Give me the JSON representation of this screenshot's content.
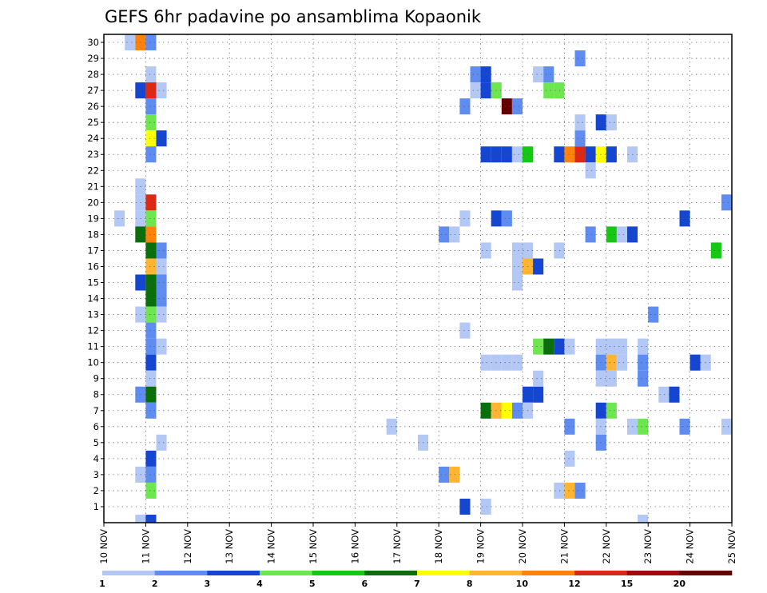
{
  "chart_data": {
    "type": "heatmap",
    "title": "GEFS 6hr padavine po ansamblima Kopaonik",
    "xlabel": "",
    "ylabel": "",
    "x_range": [
      10,
      25
    ],
    "y_range": [
      0,
      30
    ],
    "grid": true,
    "x_tick_labels": [
      "10 NOV",
      "11 NOV",
      "12 NOV",
      "13 NOV",
      "14 NOV",
      "15 NOV",
      "16 NOV",
      "17 NOV",
      "18 NOV",
      "19 NOV",
      "20 NOV",
      "21 NOV",
      "22 NOV",
      "23 NOV",
      "24 NOV",
      "25 NOV"
    ],
    "y_tick_labels": [
      "1",
      "2",
      "3",
      "4",
      "5",
      "6",
      "7",
      "8",
      "9",
      "10",
      "11",
      "12",
      "13",
      "14",
      "15",
      "16",
      "17",
      "18",
      "19",
      "20",
      "21",
      "22",
      "23",
      "24",
      "25",
      "26",
      "27",
      "28",
      "29",
      "30"
    ],
    "colorbar": {
      "labels": [
        "1",
        "2",
        "3",
        "4",
        "5",
        "6",
        "7",
        "8",
        "10",
        "12",
        "15",
        "20"
      ],
      "colors": [
        "#b4c8f5",
        "#5f8cf0",
        "#1446d2",
        "#6ee650",
        "#14c814",
        "#0a6e0a",
        "#ffff00",
        "#ffb432",
        "#ff820a",
        "#dc2814",
        "#a00a0a",
        "#640000"
      ]
    },
    "cell_width_days": 0.25,
    "cells": [
      {
        "day": 10.5,
        "member": 30,
        "level": 1
      },
      {
        "day": 10.75,
        "member": 30,
        "level": 9
      },
      {
        "day": 11.0,
        "member": 30,
        "level": 2
      },
      {
        "day": 11.0,
        "member": 28,
        "level": 1
      },
      {
        "day": 10.75,
        "member": 27,
        "level": 3
      },
      {
        "day": 11.0,
        "member": 27,
        "level": 10
      },
      {
        "day": 11.25,
        "member": 27,
        "level": 1
      },
      {
        "day": 11.0,
        "member": 26,
        "level": 2
      },
      {
        "day": 11.0,
        "member": 25,
        "level": 4
      },
      {
        "day": 11.0,
        "member": 24,
        "level": 7
      },
      {
        "day": 11.25,
        "member": 24,
        "level": 3
      },
      {
        "day": 11.0,
        "member": 23,
        "level": 2
      },
      {
        "day": 10.75,
        "member": 21,
        "level": 1
      },
      {
        "day": 10.75,
        "member": 20,
        "level": 1
      },
      {
        "day": 11.0,
        "member": 20,
        "level": 10
      },
      {
        "day": 10.25,
        "member": 19,
        "level": 1
      },
      {
        "day": 10.75,
        "member": 19,
        "level": 1
      },
      {
        "day": 11.0,
        "member": 19,
        "level": 4
      },
      {
        "day": 10.75,
        "member": 18,
        "level": 6
      },
      {
        "day": 11.0,
        "member": 18,
        "level": 9
      },
      {
        "day": 11.0,
        "member": 17,
        "level": 6
      },
      {
        "day": 11.25,
        "member": 17,
        "level": 2
      },
      {
        "day": 11.0,
        "member": 16,
        "level": 8
      },
      {
        "day": 11.25,
        "member": 16,
        "level": 1
      },
      {
        "day": 10.75,
        "member": 15,
        "level": 3
      },
      {
        "day": 11.0,
        "member": 15,
        "level": 1
      },
      {
        "day": 11.0,
        "member": 15,
        "level": 6
      },
      {
        "day": 11.25,
        "member": 15,
        "level": 2
      },
      {
        "day": 11.0,
        "member": 14,
        "level": 6
      },
      {
        "day": 11.25,
        "member": 14,
        "level": 2
      },
      {
        "day": 10.75,
        "member": 13,
        "level": 1
      },
      {
        "day": 11.0,
        "member": 13,
        "level": 4
      },
      {
        "day": 11.25,
        "member": 13,
        "level": 1
      },
      {
        "day": 11.0,
        "member": 12,
        "level": 2
      },
      {
        "day": 11.0,
        "member": 11,
        "level": 2
      },
      {
        "day": 11.25,
        "member": 11,
        "level": 1
      },
      {
        "day": 11.0,
        "member": 10,
        "level": 3
      },
      {
        "day": 11.0,
        "member": 9,
        "level": 1
      },
      {
        "day": 10.75,
        "member": 8,
        "level": 2
      },
      {
        "day": 11.0,
        "member": 8,
        "level": 6
      },
      {
        "day": 11.0,
        "member": 7,
        "level": 2
      },
      {
        "day": 11.25,
        "member": 5,
        "level": 1
      },
      {
        "day": 11.0,
        "member": 4,
        "level": 3
      },
      {
        "day": 10.75,
        "member": 3,
        "level": 1
      },
      {
        "day": 11.0,
        "member": 3,
        "level": 2
      },
      {
        "day": 11.0,
        "member": 2,
        "level": 4
      },
      {
        "day": 10.75,
        "member": 0,
        "level": 1
      },
      {
        "day": 11.0,
        "member": 0,
        "level": 3
      },
      {
        "day": 16.75,
        "member": 6,
        "level": 1
      },
      {
        "day": 17.5,
        "member": 5,
        "level": 1
      },
      {
        "day": 18.0,
        "member": 18,
        "level": 2
      },
      {
        "day": 18.25,
        "member": 18,
        "level": 1
      },
      {
        "day": 18.5,
        "member": 19,
        "level": 1
      },
      {
        "day": 18.5,
        "member": 26,
        "level": 2
      },
      {
        "day": 18.5,
        "member": 12,
        "level": 1
      },
      {
        "day": 18.0,
        "member": 3,
        "level": 2
      },
      {
        "day": 18.25,
        "member": 3,
        "level": 8
      },
      {
        "day": 18.5,
        "member": 1,
        "level": 3
      },
      {
        "day": 18.75,
        "member": 28,
        "level": 2
      },
      {
        "day": 19.0,
        "member": 28,
        "level": 3
      },
      {
        "day": 18.75,
        "member": 27,
        "level": 1
      },
      {
        "day": 19.0,
        "member": 27,
        "level": 3
      },
      {
        "day": 19.25,
        "member": 27,
        "level": 4
      },
      {
        "day": 19.5,
        "member": 26,
        "level": 12
      },
      {
        "day": 19.75,
        "member": 26,
        "level": 2
      },
      {
        "day": 19.0,
        "member": 23,
        "level": 3
      },
      {
        "day": 19.25,
        "member": 23,
        "level": 3
      },
      {
        "day": 19.5,
        "member": 23,
        "level": 3
      },
      {
        "day": 19.75,
        "member": 23,
        "level": 1
      },
      {
        "day": 20.0,
        "member": 23,
        "level": 5
      },
      {
        "day": 19.25,
        "member": 19,
        "level": 3
      },
      {
        "day": 19.5,
        "member": 19,
        "level": 2
      },
      {
        "day": 19.0,
        "member": 17,
        "level": 1
      },
      {
        "day": 19.75,
        "member": 17,
        "level": 1
      },
      {
        "day": 20.0,
        "member": 17,
        "level": 1
      },
      {
        "day": 19.75,
        "member": 16,
        "level": 1
      },
      {
        "day": 20.0,
        "member": 16,
        "level": 8
      },
      {
        "day": 20.25,
        "member": 16,
        "level": 3
      },
      {
        "day": 19.75,
        "member": 15,
        "level": 1
      },
      {
        "day": 19.0,
        "member": 10,
        "level": 1
      },
      {
        "day": 19.25,
        "member": 10,
        "level": 1
      },
      {
        "day": 19.5,
        "member": 10,
        "level": 1
      },
      {
        "day": 19.75,
        "member": 10,
        "level": 1
      },
      {
        "day": 20.0,
        "member": 8,
        "level": 3
      },
      {
        "day": 20.25,
        "member": 8,
        "level": 3
      },
      {
        "day": 20.25,
        "member": 9,
        "level": 1
      },
      {
        "day": 19.0,
        "member": 7,
        "level": 6
      },
      {
        "day": 19.25,
        "member": 7,
        "level": 8
      },
      {
        "day": 19.5,
        "member": 7,
        "level": 7
      },
      {
        "day": 19.75,
        "member": 7,
        "level": 2
      },
      {
        "day": 20.0,
        "member": 7,
        "level": 1
      },
      {
        "day": 19.0,
        "member": 1,
        "level": 1
      },
      {
        "day": 20.25,
        "member": 28,
        "level": 1
      },
      {
        "day": 20.5,
        "member": 28,
        "level": 2
      },
      {
        "day": 20.5,
        "member": 27,
        "level": 4
      },
      {
        "day": 20.75,
        "member": 27,
        "level": 4
      },
      {
        "day": 21.25,
        "member": 29,
        "level": 2
      },
      {
        "day": 21.25,
        "member": 25,
        "level": 1
      },
      {
        "day": 21.25,
        "member": 24,
        "level": 2
      },
      {
        "day": 21.75,
        "member": 25,
        "level": 3
      },
      {
        "day": 22.0,
        "member": 25,
        "level": 1
      },
      {
        "day": 20.75,
        "member": 23,
        "level": 3
      },
      {
        "day": 21.0,
        "member": 23,
        "level": 9
      },
      {
        "day": 21.25,
        "member": 23,
        "level": 10
      },
      {
        "day": 21.5,
        "member": 23,
        "level": 3
      },
      {
        "day": 21.75,
        "member": 23,
        "level": 7
      },
      {
        "day": 22.0,
        "member": 23,
        "level": 3
      },
      {
        "day": 22.5,
        "member": 23,
        "level": 1
      },
      {
        "day": 21.5,
        "member": 22,
        "level": 1
      },
      {
        "day": 21.5,
        "member": 18,
        "level": 2
      },
      {
        "day": 22.0,
        "member": 18,
        "level": 5
      },
      {
        "day": 22.25,
        "member": 18,
        "level": 1
      },
      {
        "day": 22.5,
        "member": 18,
        "level": 3
      },
      {
        "day": 20.75,
        "member": 17,
        "level": 1
      },
      {
        "day": 20.25,
        "member": 11,
        "level": 4
      },
      {
        "day": 20.5,
        "member": 11,
        "level": 6
      },
      {
        "day": 20.75,
        "member": 11,
        "level": 3
      },
      {
        "day": 21.0,
        "member": 11,
        "level": 1
      },
      {
        "day": 21.75,
        "member": 11,
        "level": 1
      },
      {
        "day": 22.0,
        "member": 11,
        "level": 1
      },
      {
        "day": 22.25,
        "member": 11,
        "level": 1
      },
      {
        "day": 22.75,
        "member": 11,
        "level": 1
      },
      {
        "day": 21.75,
        "member": 10,
        "level": 2
      },
      {
        "day": 22.0,
        "member": 10,
        "level": 8
      },
      {
        "day": 22.25,
        "member": 10,
        "level": 1
      },
      {
        "day": 22.75,
        "member": 10,
        "level": 2
      },
      {
        "day": 21.75,
        "member": 9,
        "level": 1
      },
      {
        "day": 22.0,
        "member": 9,
        "level": 1
      },
      {
        "day": 22.75,
        "member": 9,
        "level": 2
      },
      {
        "day": 21.75,
        "member": 7,
        "level": 3
      },
      {
        "day": 22.0,
        "member": 7,
        "level": 4
      },
      {
        "day": 21.0,
        "member": 6,
        "level": 2
      },
      {
        "day": 21.75,
        "member": 6,
        "level": 1
      },
      {
        "day": 22.5,
        "member": 6,
        "level": 1
      },
      {
        "day": 22.75,
        "member": 6,
        "level": 4
      },
      {
        "day": 21.75,
        "member": 5,
        "level": 2
      },
      {
        "day": 21.0,
        "member": 4,
        "level": 1
      },
      {
        "day": 20.75,
        "member": 2,
        "level": 1
      },
      {
        "day": 21.0,
        "member": 2,
        "level": 8
      },
      {
        "day": 21.25,
        "member": 2,
        "level": 2
      },
      {
        "day": 22.75,
        "member": 0,
        "level": 1
      },
      {
        "day": 23.0,
        "member": 13,
        "level": 2
      },
      {
        "day": 23.25,
        "member": 8,
        "level": 1
      },
      {
        "day": 23.5,
        "member": 8,
        "level": 3
      },
      {
        "day": 23.75,
        "member": 19,
        "level": 3
      },
      {
        "day": 23.75,
        "member": 6,
        "level": 2
      },
      {
        "day": 24.0,
        "member": 10,
        "level": 3
      },
      {
        "day": 24.25,
        "member": 10,
        "level": 1
      },
      {
        "day": 24.5,
        "member": 17,
        "level": 5
      },
      {
        "day": 24.75,
        "member": 20,
        "level": 2
      },
      {
        "day": 24.75,
        "member": 6,
        "level": 1
      }
    ]
  }
}
